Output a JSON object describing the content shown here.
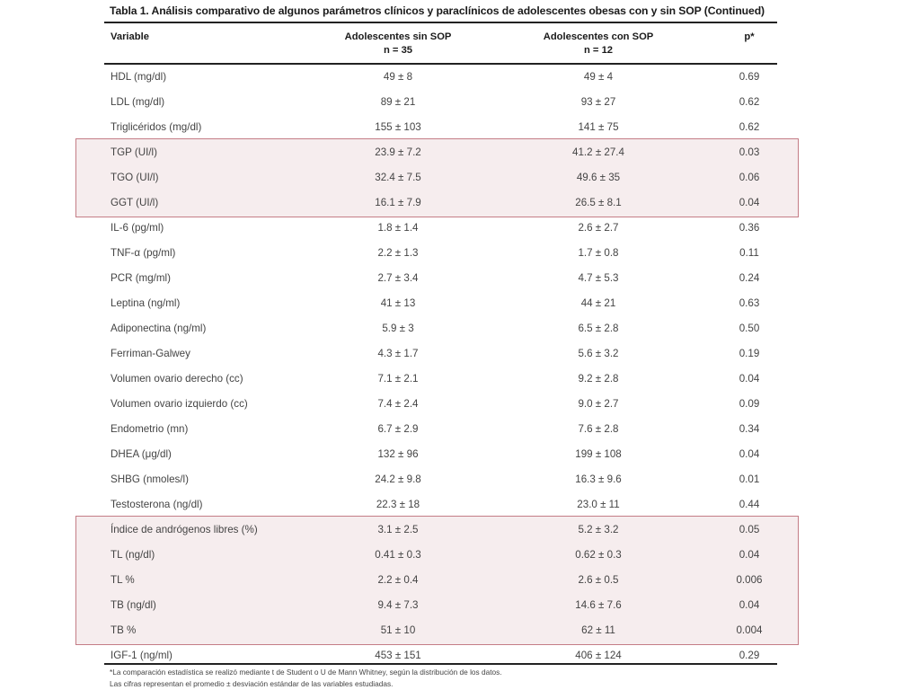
{
  "title": "Tabla 1. Análisis comparativo de algunos parámetros clínicos y paraclínicos de adolescentes obesas con y sin SOP (Continued)",
  "header": {
    "variable": "Variable",
    "group1_name": "Adolescentes sin SOP",
    "group1_n": "n = 35",
    "group2_name": "Adolescentes con SOP",
    "group2_n": "n = 12",
    "p": "p*"
  },
  "rows": [
    {
      "variable": "HDL (mg/dl)",
      "g1": "49 ± 8",
      "g2": "49 ± 4",
      "p": "0.69"
    },
    {
      "variable": "LDL (mg/dl)",
      "g1": "89 ± 21",
      "g2": "93 ± 27",
      "p": "0.62"
    },
    {
      "variable": "Triglicéridos (mg/dl)",
      "g1": "155 ± 103",
      "g2": "141 ± 75",
      "p": "0.62"
    },
    {
      "variable": "TGP (UI/l)",
      "g1": "23.9 ± 7.2",
      "g2": "41.2 ± 27.4",
      "p": "0.03"
    },
    {
      "variable": "TGO (UI/l)",
      "g1": "32.4 ± 7.5",
      "g2": "49.6 ± 35",
      "p": "0.06"
    },
    {
      "variable": "GGT (UI/l)",
      "g1": "16.1 ± 7.9",
      "g2": "26.5 ± 8.1",
      "p": "0.04"
    },
    {
      "variable": "IL-6 (pg/ml)",
      "g1": "1.8 ± 1.4",
      "g2": "2.6 ± 2.7",
      "p": "0.36"
    },
    {
      "variable": "TNF-α (pg/ml)",
      "g1": "2.2 ± 1.3",
      "g2": "1.7 ± 0.8",
      "p": "0.11"
    },
    {
      "variable": "PCR (mg/ml)",
      "g1": "2.7 ± 3.4",
      "g2": "4.7 ± 5.3",
      "p": "0.24"
    },
    {
      "variable": "Leptina (ng/ml)",
      "g1": "41 ± 13",
      "g2": "44 ± 21",
      "p": "0.63"
    },
    {
      "variable": "Adiponectina (ng/ml)",
      "g1": "5.9 ± 3",
      "g2": "6.5 ± 2.8",
      "p": "0.50"
    },
    {
      "variable": "Ferriman-Galwey",
      "g1": "4.3 ± 1.7",
      "g2": "5.6 ± 3.2",
      "p": "0.19"
    },
    {
      "variable": "Volumen ovario derecho (cc)",
      "g1": "7.1 ± 2.1",
      "g2": "9.2 ± 2.8",
      "p": "0.04"
    },
    {
      "variable": "Volumen ovario izquierdo (cc)",
      "g1": "7.4 ± 2.4",
      "g2": "9.0 ± 2.7",
      "p": "0.09"
    },
    {
      "variable": "Endometrio (mn)",
      "g1": "6.7 ± 2.9",
      "g2": "7.6 ± 2.8",
      "p": "0.34"
    },
    {
      "variable": "DHEA (μg/dl)",
      "g1": "132 ± 96",
      "g2": "199 ± 108",
      "p": "0.04"
    },
    {
      "variable": "SHBG (nmoles/l)",
      "g1": "24.2 ± 9.8",
      "g2": "16.3 ± 9.6",
      "p": "0.01"
    },
    {
      "variable": "Testosterona (ng/dl)",
      "g1": "22.3 ± 18",
      "g2": "23.0 ± 11",
      "p": "0.44"
    },
    {
      "variable": "Índice de andrógenos libres (%)",
      "g1": "3.1 ± 2.5",
      "g2": "5.2 ± 3.2",
      "p": "0.05"
    },
    {
      "variable": "TL (ng/dl)",
      "g1": "0.41 ± 0.3",
      "g2": "0.62 ± 0.3",
      "p": "0.04"
    },
    {
      "variable": "TL %",
      "g1": "2.2 ± 0.4",
      "g2": "2.6 ± 0.5",
      "p": "0.006"
    },
    {
      "variable": "TB (ng/dl)",
      "g1": "9.4 ± 7.3",
      "g2": "14.6 ± 7.6",
      "p": "0.04"
    },
    {
      "variable": "TB %",
      "g1": "51 ± 10",
      "g2": "62 ± 11",
      "p": "0.004"
    },
    {
      "variable": "IGF-1 (ng/ml)",
      "g1": "453 ± 151",
      "g2": "406 ± 124",
      "p": "0.29"
    }
  ],
  "highlight_groups": [
    {
      "first_row": 3,
      "last_row": 5,
      "color": "#c47d86"
    },
    {
      "first_row": 18,
      "last_row": 22,
      "color": "#c47d86"
    }
  ],
  "footnotes": [
    "*La comparación estadística se realizó mediante t de Student o U de Mann Whitney, según la distribución de los datos.",
    "Las cifras representan el promedio ± desviación estándar de las variables estudiadas."
  ]
}
